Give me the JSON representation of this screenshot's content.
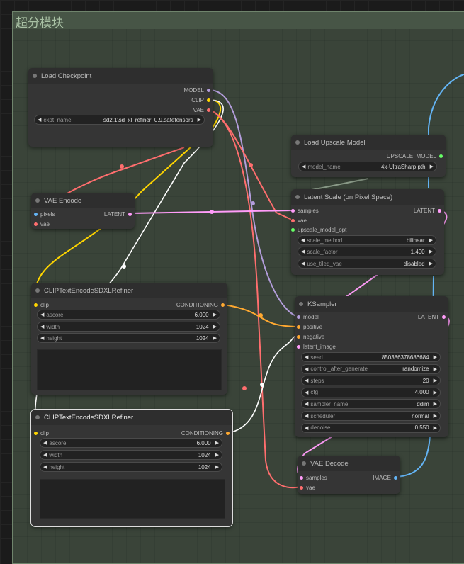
{
  "group": {
    "title": "超分模块"
  },
  "colors": {
    "model": "#b39ddb",
    "clip": "#ffd500",
    "vae": "#ff6e6e",
    "latent": "#ff9cf9",
    "conditioning": "#ffa931",
    "upscale_model": "#66ff66",
    "image": "#64b5f6",
    "pixels": "#64b5f6"
  },
  "load_checkpoint": {
    "title": "Load Checkpoint",
    "outputs": [
      "MODEL",
      "CLIP",
      "VAE"
    ],
    "widgets": [
      {
        "label": "ckpt_name",
        "value": "sd2.1\\sd_xl_refiner_0.9.safetensors"
      }
    ]
  },
  "vae_encode": {
    "title": "VAE Encode",
    "inputs": [
      "pixels",
      "vae"
    ],
    "output": "LATENT"
  },
  "clip1": {
    "title": "CLIPTextEncodeSDXLRefiner",
    "input": "clip",
    "output": "CONDITIONING",
    "widgets": [
      {
        "label": "ascore",
        "value": "6.000"
      },
      {
        "label": "width",
        "value": "1024"
      },
      {
        "label": "height",
        "value": "1024"
      }
    ]
  },
  "clip2": {
    "title": "CLIPTextEncodeSDXLRefiner",
    "input": "clip",
    "output": "CONDITIONING",
    "widgets": [
      {
        "label": "ascore",
        "value": "6.000"
      },
      {
        "label": "width",
        "value": "1024"
      },
      {
        "label": "height",
        "value": "1024"
      }
    ]
  },
  "upscale_loader": {
    "title": "Load Upscale Model",
    "output": "UPSCALE_MODEL",
    "widgets": [
      {
        "label": "model_name",
        "value": "4x-UltraSharp.pth"
      }
    ]
  },
  "latent_scale": {
    "title": "Latent Scale (on Pixel Space)",
    "inputs": [
      "samples",
      "vae",
      "upscale_model_opt"
    ],
    "output": "LATENT",
    "widgets": [
      {
        "label": "scale_method",
        "value": "bilinear"
      },
      {
        "label": "scale_factor",
        "value": "1.400"
      },
      {
        "label": "use_tiled_vae",
        "value": "disabled"
      }
    ]
  },
  "ksampler": {
    "title": "KSampler",
    "inputs": [
      "model",
      "positive",
      "negative",
      "latent_image"
    ],
    "output": "LATENT",
    "widgets": [
      {
        "label": "seed",
        "value": "850386378686684"
      },
      {
        "label": "control_after_generate",
        "value": "randomize"
      },
      {
        "label": "steps",
        "value": "20"
      },
      {
        "label": "cfg",
        "value": "4.000"
      },
      {
        "label": "sampler_name",
        "value": "ddim"
      },
      {
        "label": "scheduler",
        "value": "normal"
      },
      {
        "label": "denoise",
        "value": "0.550"
      }
    ]
  },
  "vae_decode": {
    "title": "VAE Decode",
    "inputs": [
      "samples",
      "vae"
    ],
    "output": "IMAGE"
  }
}
